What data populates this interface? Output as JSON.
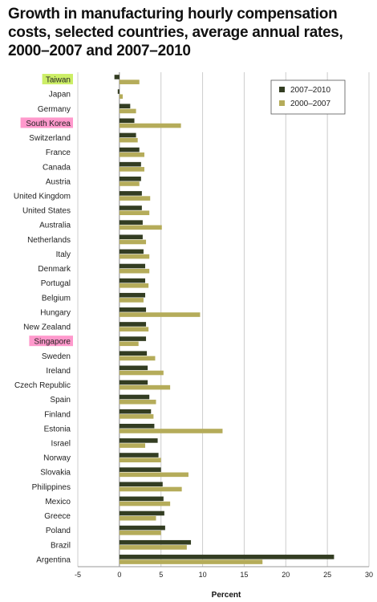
{
  "chart_data": {
    "type": "bar",
    "orientation": "horizontal",
    "title": "Growth in manufacturing hourly compensation costs, selected countries, average annual rates, 2000–2007 and 2007–2010",
    "xlabel": "Percent",
    "ylabel": "",
    "xlim": [
      -5,
      30
    ],
    "xticks": [
      "-5",
      "0",
      "5",
      "10",
      "15",
      "20",
      "25",
      "30"
    ],
    "grid": true,
    "legend_position": "top-right",
    "categories": [
      "Taiwan",
      "Japan",
      "Germany",
      "South Korea",
      "Switzerland",
      "France",
      "Canada",
      "Austria",
      "United Kingdom",
      "United States",
      "Australia",
      "Netherlands",
      "Italy",
      "Denmark",
      "Portugal",
      "Belgium",
      "Hungary",
      "New Zealand",
      "Singapore",
      "Sweden",
      "Ireland",
      "Czech Republic",
      "Spain",
      "Finland",
      "Estonia",
      "Israel",
      "Norway",
      "Slovakia",
      "Philippines",
      "Mexico",
      "Greece",
      "Poland",
      "Brazil",
      "Argentina"
    ],
    "highlighted": {
      "Taiwan": "#ccee66",
      "South Korea": "#ff99cc",
      "Singapore": "#ff99cc"
    },
    "series": [
      {
        "name": "2007–2010",
        "color": "#333d22",
        "values": [
          -0.6,
          -0.2,
          1.3,
          1.8,
          2.0,
          2.4,
          2.6,
          2.6,
          2.7,
          2.7,
          2.8,
          2.8,
          2.9,
          3.1,
          3.1,
          3.1,
          3.2,
          3.2,
          3.2,
          3.3,
          3.4,
          3.4,
          3.6,
          3.8,
          4.2,
          4.6,
          4.7,
          5.0,
          5.2,
          5.3,
          5.4,
          5.5,
          8.6,
          25.8
        ]
      },
      {
        "name": "2000–2007",
        "color": "#b5ac5a",
        "values": [
          2.4,
          0.4,
          2.0,
          7.4,
          2.2,
          3.0,
          3.0,
          2.4,
          3.7,
          3.6,
          5.1,
          3.2,
          3.6,
          3.6,
          3.5,
          2.9,
          9.7,
          3.5,
          2.3,
          4.3,
          5.3,
          6.1,
          4.4,
          4.1,
          12.4,
          3.1,
          5.0,
          8.3,
          7.5,
          6.1,
          4.4,
          5.0,
          8.1,
          17.2
        ]
      }
    ]
  }
}
